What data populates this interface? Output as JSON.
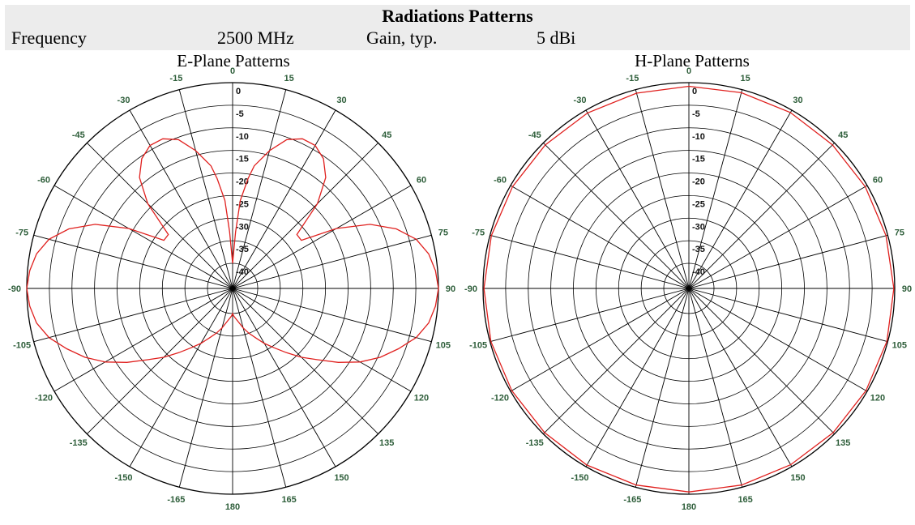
{
  "header": {
    "title": "Radiations Patterns",
    "frequency_label": "Frequency",
    "frequency_value": "2500 MHz",
    "gain_label": "Gain, typ.",
    "gain_value": "5 dBi"
  },
  "colors": {
    "header_bg": "#ececec",
    "trace": "#e0201e",
    "angle_label": "#2e5e3a",
    "grid": "#000000"
  },
  "chart_data": [
    {
      "type": "polar",
      "title": "E-Plane Patterns",
      "angle_ticks": [
        0,
        15,
        30,
        45,
        60,
        75,
        90,
        105,
        120,
        135,
        150,
        165,
        180,
        -165,
        -150,
        -135,
        -120,
        -105,
        -90,
        -75,
        -60,
        -45,
        -30,
        -15
      ],
      "radial_ticks": [
        0,
        -5,
        -10,
        -15,
        -20,
        -25,
        -30,
        -35,
        -40
      ],
      "rlim": [
        -40,
        0
      ],
      "grid": true,
      "series": [
        {
          "color": "#e0201e",
          "theta": [
            0,
            3,
            5,
            8,
            10,
            15,
            20,
            25,
            30,
            35,
            40,
            45,
            50,
            55,
            60,
            65,
            70,
            75,
            80,
            85,
            90,
            95,
            100,
            105,
            110,
            115,
            120,
            125,
            130,
            135,
            140,
            145,
            150,
            155,
            160,
            165,
            170,
            175,
            178,
            180,
            -178,
            -175,
            -170,
            -165,
            -160,
            -155,
            -150,
            -145,
            -140,
            -135,
            -130,
            -125,
            -120,
            -115,
            -110,
            -105,
            -100,
            -95,
            -90,
            -85,
            -80,
            -75,
            -70,
            -65,
            -60,
            -55,
            -50,
            -45,
            -40,
            -35,
            -30,
            -25,
            -20,
            -15,
            -10,
            -8,
            -5,
            -3
          ],
          "r": [
            -40,
            -33,
            -26,
            -21,
            -18,
            -14,
            -10.5,
            -9,
            -9,
            -10.5,
            -13.5,
            -19,
            -27,
            -27,
            -19,
            -12,
            -7,
            -3.5,
            -1.5,
            -0.5,
            0,
            -0.5,
            -1.5,
            -3.5,
            -6.5,
            -9.5,
            -13,
            -17,
            -21,
            -24,
            -27,
            -29.5,
            -31.5,
            -33.5,
            -35,
            -36.5,
            -38,
            -39,
            -39.5,
            -40,
            -39.5,
            -39,
            -38,
            -36.5,
            -35,
            -33.5,
            -31.5,
            -29.5,
            -27,
            -24,
            -21,
            -17,
            -13,
            -9.5,
            -6.5,
            -3.5,
            -1.5,
            -0.5,
            0,
            -0.5,
            -1.5,
            -3.5,
            -7,
            -12,
            -19,
            -27,
            -27,
            -19,
            -13.5,
            -10.5,
            -9,
            -9,
            -10.5,
            -14,
            -18,
            -21,
            -26,
            -33
          ]
        }
      ]
    },
    {
      "type": "polar",
      "title": "H-Plane Patterns",
      "angle_ticks": [
        0,
        15,
        30,
        45,
        60,
        75,
        90,
        105,
        120,
        135,
        150,
        165,
        180,
        -165,
        -150,
        -135,
        -120,
        -105,
        -90,
        -75,
        -60,
        -45,
        -30,
        -15
      ],
      "radial_ticks": [
        0,
        -5,
        -10,
        -15,
        -20,
        -25,
        -30,
        -35,
        -40
      ],
      "rlim": [
        -40,
        0
      ],
      "grid": true,
      "series": [
        {
          "color": "#e0201e",
          "theta": [
            0,
            15,
            30,
            45,
            60,
            75,
            90,
            105,
            120,
            135,
            150,
            165,
            180,
            -165,
            -150,
            -135,
            -120,
            -105,
            -90,
            -75,
            -60,
            -45,
            -30,
            -15
          ],
          "r": [
            -0.8,
            -0.7,
            -0.6,
            -0.6,
            -0.5,
            -0.4,
            -0.2,
            -0.2,
            -0.3,
            -0.4,
            -0.5,
            -0.5,
            -0.5,
            -0.5,
            -0.4,
            -0.4,
            -0.3,
            -0.2,
            -0.2,
            -0.3,
            -0.5,
            -0.6,
            -0.7,
            -0.8
          ]
        }
      ]
    }
  ]
}
